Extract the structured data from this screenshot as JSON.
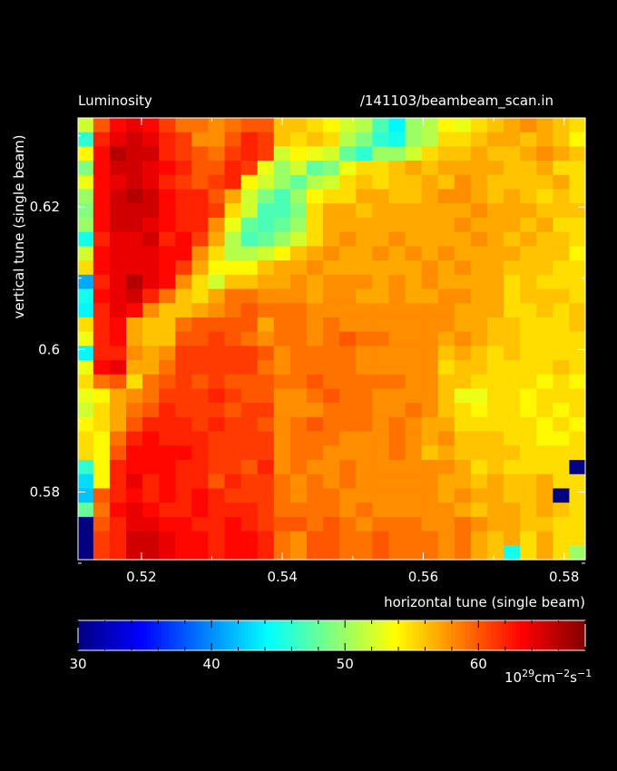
{
  "chart_data": {
    "type": "heatmap",
    "title": "Luminosity",
    "subtitle": "/141103/beambeam_scan.in",
    "xlabel": "horizontal tune (single beam)",
    "ylabel": "vertical tune (single beam)",
    "xlim": [
      0.511,
      0.583
    ],
    "ylim": [
      0.5705,
      0.6325
    ],
    "x_ticks": [
      0.52,
      0.54,
      0.56,
      0.58
    ],
    "x_tick_labels": [
      "0.52",
      "0.54",
      "0.56",
      "0.58"
    ],
    "y_ticks": [
      0.58,
      0.6,
      0.62
    ],
    "y_tick_labels": [
      "0.58",
      "0.6",
      "0.62"
    ],
    "colorbar": {
      "min": 30,
      "max": 68,
      "ticks": [
        30,
        40,
        50,
        60
      ],
      "tick_labels": [
        "30",
        "40",
        "50",
        "60"
      ],
      "unit_base": "10",
      "unit_exp1": "29",
      "unit_mid": "cm",
      "unit_exp2": "−2",
      "unit_mid2": "s",
      "unit_exp3": "−1",
      "colormap": "jet"
    },
    "grid": {
      "cols": 31,
      "rows": 31,
      "x_first": 0.512,
      "x_step": 0.00233,
      "y_first": 0.5715,
      "y_step": 0.002,
      "missing_value": 30,
      "rows_top_to_bottom": [
        [
          52,
          60,
          63,
          64,
          63,
          61,
          59,
          59,
          58,
          59,
          60,
          60,
          56,
          56,
          55,
          54,
          52,
          51,
          47,
          44,
          50,
          51,
          54,
          53,
          55,
          56,
          57,
          58,
          57,
          56,
          55
        ],
        [
          46,
          62,
          64,
          65,
          64,
          62,
          61,
          58,
          58,
          60,
          62,
          61,
          56,
          55,
          56,
          55,
          51,
          49,
          46,
          45,
          50,
          51,
          55,
          55,
          56,
          57,
          57,
          56,
          57,
          56,
          54
        ],
        [
          54,
          63,
          66,
          65,
          65,
          62,
          61,
          60,
          59,
          61,
          62,
          61,
          52,
          54,
          53,
          52,
          48,
          46,
          50,
          50,
          52,
          55,
          56,
          56,
          57,
          56,
          56,
          57,
          58,
          57,
          56
        ],
        [
          49,
          63,
          65,
          65,
          64,
          63,
          62,
          60,
          60,
          62,
          61,
          53,
          50,
          52,
          48,
          49,
          53,
          55,
          55,
          56,
          57,
          56,
          57,
          57,
          57,
          57,
          56,
          56,
          57,
          55,
          55
        ],
        [
          53,
          63,
          64,
          65,
          64,
          62,
          61,
          60,
          61,
          62,
          54,
          52,
          50,
          48,
          51,
          52,
          55,
          56,
          55,
          56,
          56,
          57,
          56,
          58,
          57,
          56,
          56,
          56,
          56,
          57,
          55
        ],
        [
          50,
          63,
          65,
          66,
          65,
          63,
          62,
          62,
          60,
          57,
          52,
          49,
          47,
          50,
          54,
          55,
          55,
          57,
          57,
          56,
          56,
          57,
          58,
          58,
          57,
          56,
          57,
          56,
          55,
          56,
          55
        ],
        [
          49,
          63,
          65,
          65,
          65,
          63,
          62,
          62,
          61,
          55,
          52,
          47,
          47,
          49,
          55,
          57,
          57,
          56,
          57,
          57,
          57,
          57,
          57,
          57,
          58,
          57,
          57,
          57,
          56,
          56,
          56
        ],
        [
          50,
          63,
          65,
          65,
          64,
          63,
          62,
          62,
          58,
          53,
          48,
          47,
          48,
          50,
          55,
          57,
          57,
          57,
          57,
          57,
          57,
          57,
          57,
          58,
          57,
          57,
          57,
          56,
          57,
          55,
          55
        ],
        [
          45,
          62,
          64,
          64,
          65,
          62,
          63,
          61,
          57,
          51,
          47,
          48,
          50,
          52,
          55,
          57,
          58,
          57,
          57,
          58,
          57,
          57,
          57,
          57,
          58,
          57,
          56,
          57,
          56,
          56,
          55
        ],
        [
          52,
          63,
          64,
          64,
          64,
          63,
          63,
          58,
          55,
          51,
          51,
          52,
          54,
          56,
          57,
          58,
          57,
          57,
          58,
          57,
          58,
          57,
          58,
          57,
          57,
          57,
          57,
          56,
          56,
          56,
          54
        ],
        [
          55,
          63,
          64,
          64,
          64,
          63,
          61,
          57,
          54,
          54,
          54,
          56,
          57,
          57,
          58,
          57,
          57,
          57,
          57,
          57,
          57,
          58,
          57,
          58,
          57,
          57,
          56,
          56,
          56,
          55,
          55
        ],
        [
          41,
          62,
          64,
          66,
          64,
          63,
          58,
          55,
          52,
          56,
          56,
          57,
          57,
          58,
          57,
          58,
          58,
          58,
          57,
          58,
          57,
          58,
          57,
          57,
          57,
          57,
          55,
          56,
          55,
          55,
          55
        ],
        [
          45,
          63,
          64,
          65,
          62,
          59,
          56,
          55,
          57,
          59,
          59,
          58,
          58,
          58,
          57,
          58,
          58,
          57,
          57,
          58,
          57,
          57,
          58,
          58,
          57,
          57,
          55,
          56,
          56,
          56,
          55
        ],
        [
          44,
          62,
          64,
          63,
          58,
          56,
          56,
          57,
          58,
          59,
          60,
          59,
          59,
          59,
          58,
          58,
          58,
          58,
          58,
          58,
          58,
          58,
          58,
          57,
          57,
          57,
          55,
          55,
          56,
          55,
          56
        ],
        [
          55,
          62,
          63,
          57,
          56,
          56,
          59,
          60,
          60,
          60,
          60,
          57,
          59,
          59,
          58,
          59,
          58,
          58,
          58,
          58,
          58,
          58,
          58,
          57,
          57,
          56,
          56,
          55,
          55,
          55,
          56
        ],
        [
          53,
          62,
          63,
          57,
          56,
          56,
          60,
          60,
          61,
          60,
          59,
          58,
          59,
          59,
          58,
          59,
          60,
          59,
          59,
          58,
          58,
          58,
          57,
          58,
          57,
          56,
          56,
          55,
          55,
          55,
          55
        ],
        [
          44,
          62,
          62,
          58,
          57,
          58,
          61,
          61,
          61,
          61,
          61,
          60,
          58,
          59,
          59,
          59,
          59,
          58,
          58,
          58,
          58,
          58,
          56,
          57,
          56,
          55,
          56,
          55,
          55,
          55,
          55
        ],
        [
          53,
          63,
          64,
          57,
          57,
          59,
          61,
          61,
          61,
          61,
          61,
          59,
          58,
          59,
          59,
          59,
          59,
          58,
          58,
          58,
          58,
          58,
          55,
          56,
          56,
          55,
          55,
          55,
          55,
          56,
          55
        ],
        [
          55,
          59,
          60,
          55,
          59,
          60,
          61,
          60,
          61,
          60,
          60,
          60,
          59,
          59,
          60,
          59,
          59,
          59,
          59,
          59,
          58,
          58,
          56,
          56,
          55,
          55,
          55,
          55,
          54,
          55,
          54
        ],
        [
          53,
          54,
          57,
          58,
          59,
          61,
          61,
          61,
          62,
          61,
          60,
          60,
          58,
          58,
          59,
          60,
          59,
          59,
          58,
          58,
          58,
          58,
          56,
          53,
          53,
          55,
          55,
          54,
          55,
          55,
          55
        ],
        [
          52,
          55,
          57,
          59,
          60,
          62,
          61,
          61,
          61,
          60,
          61,
          61,
          58,
          58,
          58,
          59,
          59,
          59,
          58,
          58,
          59,
          58,
          56,
          55,
          54,
          55,
          55,
          54,
          55,
          54,
          55
        ],
        [
          54,
          55,
          57,
          60,
          62,
          62,
          62,
          61,
          62,
          61,
          61,
          60,
          58,
          59,
          60,
          59,
          59,
          59,
          58,
          59,
          58,
          57,
          57,
          55,
          55,
          55,
          55,
          55,
          54,
          55,
          54
        ],
        [
          55,
          54,
          59,
          62,
          63,
          62,
          62,
          62,
          61,
          61,
          61,
          61,
          58,
          59,
          59,
          59,
          58,
          58,
          58,
          59,
          58,
          57,
          58,
          56,
          56,
          56,
          55,
          55,
          54,
          54,
          55
        ],
        [
          55,
          54,
          60,
          63,
          63,
          63,
          63,
          62,
          61,
          61,
          61,
          61,
          58,
          59,
          59,
          58,
          58,
          58,
          58,
          59,
          58,
          56,
          57,
          56,
          56,
          56,
          56,
          55,
          55,
          55,
          55
        ],
        [
          46,
          54,
          62,
          63,
          63,
          63,
          62,
          62,
          61,
          61,
          60,
          62,
          58,
          59,
          58,
          58,
          59,
          58,
          58,
          58,
          58,
          58,
          58,
          57,
          55,
          56,
          55,
          55,
          55,
          55,
          30
        ],
        [
          43,
          54,
          62,
          64,
          62,
          63,
          62,
          62,
          60,
          62,
          61,
          61,
          59,
          58,
          59,
          58,
          59,
          58,
          58,
          58,
          58,
          58,
          57,
          57,
          56,
          57,
          56,
          56,
          57,
          55,
          55
        ],
        [
          42,
          60,
          62,
          63,
          62,
          63,
          62,
          63,
          62,
          61,
          61,
          61,
          59,
          58,
          59,
          59,
          58,
          58,
          58,
          58,
          58,
          58,
          57,
          58,
          57,
          57,
          56,
          56,
          57,
          30,
          55
        ],
        [
          48,
          59,
          63,
          64,
          63,
          62,
          62,
          63,
          62,
          62,
          62,
          61,
          59,
          59,
          59,
          59,
          58,
          59,
          58,
          58,
          58,
          58,
          58,
          57,
          56,
          57,
          57,
          56,
          57,
          56,
          55
        ],
        [
          30,
          60,
          62,
          64,
          64,
          63,
          63,
          62,
          62,
          63,
          62,
          61,
          60,
          60,
          59,
          60,
          59,
          58,
          59,
          59,
          59,
          58,
          58,
          59,
          58,
          57,
          57,
          56,
          56,
          55,
          55
        ],
        [
          30,
          61,
          62,
          65,
          65,
          64,
          63,
          63,
          62,
          63,
          63,
          62,
          59,
          58,
          60,
          60,
          59,
          59,
          60,
          59,
          59,
          59,
          58,
          59,
          57,
          56,
          57,
          55,
          57,
          55,
          55
        ],
        [
          30,
          61,
          62,
          65,
          65,
          64,
          63,
          63,
          62,
          63,
          63,
          62,
          59,
          58,
          60,
          60,
          59,
          59,
          60,
          59,
          59,
          59,
          58,
          59,
          57,
          56,
          45,
          55,
          57,
          55,
          50
        ]
      ]
    }
  }
}
